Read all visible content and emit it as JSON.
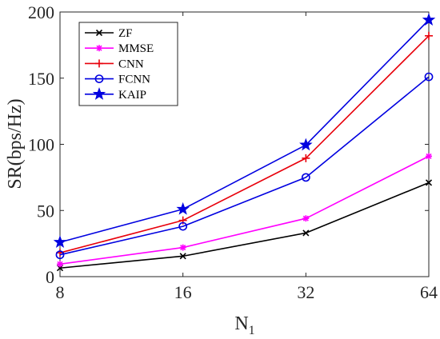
{
  "chart_data": {
    "type": "line",
    "x": [
      8,
      16,
      32,
      64
    ],
    "x_tick_labels": [
      "8",
      "16",
      "32",
      "64"
    ],
    "x_scale": "log2",
    "xlabel": "N",
    "xlabel_subscript": "1",
    "ylabel": "SR(bps/Hz)",
    "ylim": [
      0,
      200
    ],
    "y_ticks": [
      0,
      50,
      100,
      150,
      200
    ],
    "y_tick_labels": [
      "0",
      "50",
      "100",
      "150",
      "200"
    ],
    "grid": false,
    "legend_placement": "top-left",
    "series": [
      {
        "name": "ZF",
        "values": [
          6.5,
          15.5,
          33,
          71
        ],
        "color": "#000000",
        "marker": "x"
      },
      {
        "name": "MMSE",
        "values": [
          9.5,
          22,
          44,
          91
        ],
        "color": "#ff00ff",
        "marker": "asterisk"
      },
      {
        "name": "CNN",
        "values": [
          18,
          42.5,
          89.5,
          182
        ],
        "color": "#e8000b",
        "marker": "plus"
      },
      {
        "name": "FCNN",
        "values": [
          16.5,
          38,
          75,
          151
        ],
        "color": "#0000e0",
        "marker": "circle"
      },
      {
        "name": "KAIP",
        "values": [
          26,
          51,
          99.5,
          194
        ],
        "color": "#0000e0",
        "marker": "star"
      }
    ]
  }
}
